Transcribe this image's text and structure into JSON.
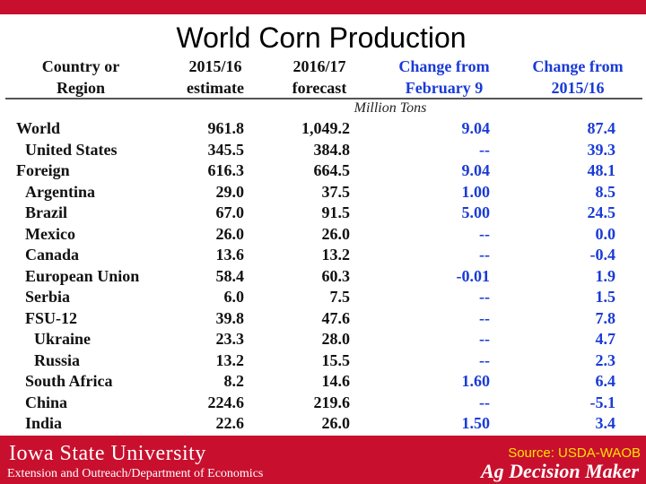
{
  "slide": {
    "title": "World Corn Production"
  },
  "table": {
    "headers": {
      "country": [
        "Country or",
        "Region"
      ],
      "estimate": [
        "2015/16",
        "estimate"
      ],
      "forecast": [
        "2016/17",
        "forecast"
      ],
      "change_feb": [
        "Change from",
        "February 9"
      ],
      "change_prev": [
        "Change from",
        "2015/16"
      ]
    },
    "units": "Million Tons",
    "rows": [
      {
        "name": "World",
        "est": "961.8",
        "fc": "1,049.2",
        "chg_feb": "9.04",
        "chg_prev": "87.4"
      },
      {
        "name": "United States",
        "est": "345.5",
        "fc": "384.8",
        "chg_feb": "--",
        "chg_prev": "39.3"
      },
      {
        "name": "Foreign",
        "est": "616.3",
        "fc": "664.5",
        "chg_feb": "9.04",
        "chg_prev": "48.1"
      },
      {
        "name": "Argentina",
        "est": "29.0",
        "fc": "37.5",
        "chg_feb": "1.00",
        "chg_prev": "8.5"
      },
      {
        "name": "Brazil",
        "est": "67.0",
        "fc": "91.5",
        "chg_feb": "5.00",
        "chg_prev": "24.5"
      },
      {
        "name": "Mexico",
        "est": "26.0",
        "fc": "26.0",
        "chg_feb": "--",
        "chg_prev": "0.0"
      },
      {
        "name": "Canada",
        "est": "13.6",
        "fc": "13.2",
        "chg_feb": "--",
        "chg_prev": "-0.4"
      },
      {
        "name": "European Union",
        "est": "58.4",
        "fc": "60.3",
        "chg_feb": "-0.01",
        "chg_prev": "1.9"
      },
      {
        "name": "Serbia",
        "est": "6.0",
        "fc": "7.5",
        "chg_feb": "--",
        "chg_prev": "1.5"
      },
      {
        "name": "FSU-12",
        "est": "39.8",
        "fc": "47.6",
        "chg_feb": "--",
        "chg_prev": "7.8"
      },
      {
        "name": "Ukraine",
        "est": "23.3",
        "fc": "28.0",
        "chg_feb": "--",
        "chg_prev": "4.7"
      },
      {
        "name": "Russia",
        "est": "13.2",
        "fc": "15.5",
        "chg_feb": "--",
        "chg_prev": "2.3"
      },
      {
        "name": "South Africa",
        "est": "8.2",
        "fc": "14.6",
        "chg_feb": "1.60",
        "chg_prev": "6.4"
      },
      {
        "name": "China",
        "est": "224.6",
        "fc": "219.6",
        "chg_feb": "--",
        "chg_prev": "-5.1"
      },
      {
        "name": "India",
        "est": "22.6",
        "fc": "26.0",
        "chg_feb": "1.50",
        "chg_prev": "3.4"
      }
    ]
  },
  "footer": {
    "university": "Iowa State University",
    "extension": "Extension and Outreach/Department of Economics",
    "source": "Source: USDA-WAOB",
    "brand": "Ag Decision Maker"
  },
  "colors": {
    "brand_red": "#c8102e",
    "accent_blue": "#1a3bd6",
    "source_yellow": "#ffe100"
  }
}
